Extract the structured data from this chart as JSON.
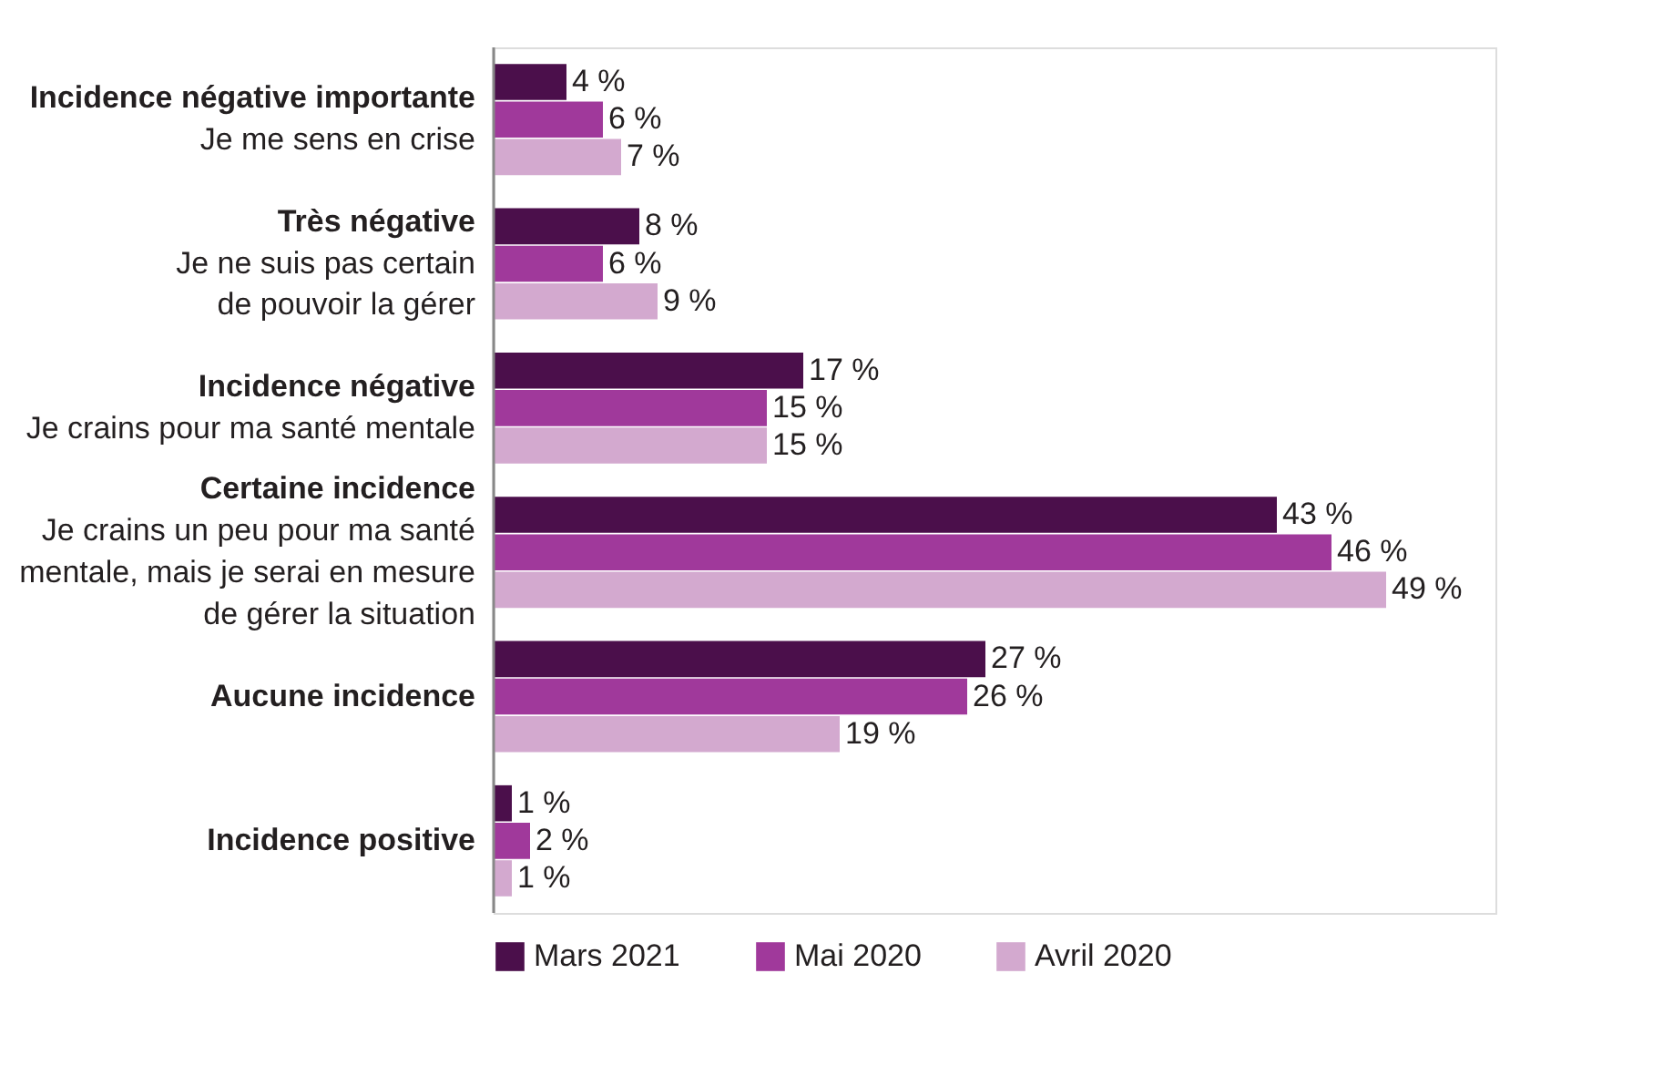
{
  "chart_data": {
    "type": "bar",
    "orientation": "horizontal",
    "categories": [
      "Incidence négative importante\nJe me sens en crise",
      "Très négative\nJe ne suis pas certain\nde pouvoir la gérer",
      "Incidence négative\nJe crains pour ma santé mentale",
      "Certaine incidence\nJe crains un peu pour ma santé\nmentale, mais je serai en mesure\nde gérer la situation",
      "Aucune incidence",
      "Incidence positive"
    ],
    "series": [
      {
        "name": "Mars 2021",
        "color": "#4b0f4b",
        "values": [
          4,
          8,
          17,
          43,
          27,
          1
        ],
        "value_labels": [
          "4 %",
          "8 %",
          "17 %",
          "43 %",
          "27 %",
          "1 %"
        ]
      },
      {
        "name": "Mai 2020",
        "color": "#a0399b",
        "values": [
          6,
          6,
          15,
          46,
          26,
          2
        ],
        "value_labels": [
          "6 %",
          "6 %",
          "15 %",
          "46 %",
          "26 %",
          "2 %"
        ]
      },
      {
        "name": "Avril 2020",
        "color": "#d3a9cf",
        "values": [
          7,
          9,
          15,
          49,
          19,
          1
        ],
        "value_labels": [
          "7 %",
          "9 %",
          "15 %",
          "49 %",
          "19 %",
          "1 %"
        ]
      }
    ],
    "xlim": [
      0,
      55
    ],
    "legend": "bottom",
    "grid": false
  }
}
